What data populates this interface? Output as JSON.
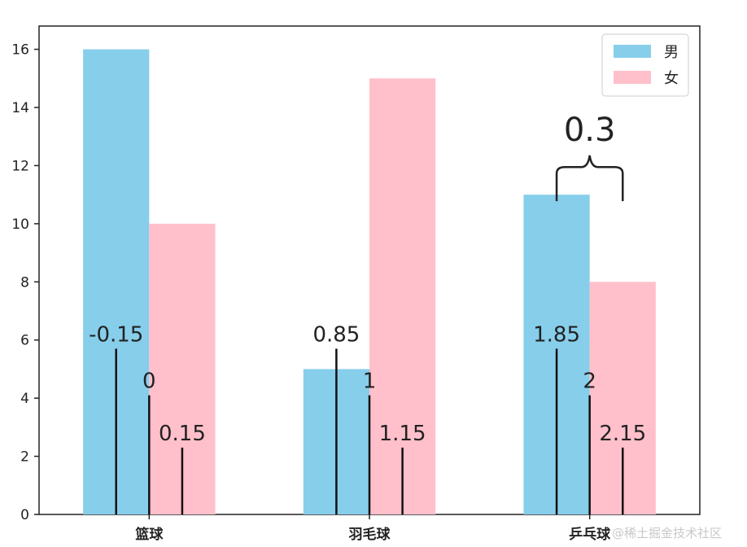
{
  "chart_data": {
    "type": "bar",
    "categories": [
      "篮球",
      "羽毛球",
      "乒乓球"
    ],
    "series": [
      {
        "name": "男",
        "values": [
          16,
          5,
          11
        ],
        "color": "#87ceeb"
      },
      {
        "name": "女",
        "values": [
          10,
          15,
          8
        ],
        "color": "#ffc0cb"
      }
    ],
    "ylim": [
      0,
      16.8
    ],
    "yticks": [
      0,
      2,
      4,
      6,
      8,
      10,
      12,
      14,
      16
    ],
    "xlim": [
      -0.5,
      2.5
    ],
    "legend_position": "top-right",
    "grid": false,
    "annotations": {
      "markers": [
        {
          "x": -0.15,
          "label": "-0.15",
          "height": 5.7
        },
        {
          "x": 0,
          "label": "0",
          "height": 4.1
        },
        {
          "x": 0.15,
          "label": "0.15",
          "height": 2.3
        },
        {
          "x": 0.85,
          "label": "0.85",
          "height": 5.7
        },
        {
          "x": 1,
          "label": "1",
          "height": 4.1
        },
        {
          "x": 1.15,
          "label": "1.15",
          "height": 2.3
        },
        {
          "x": 1.85,
          "label": "1.85",
          "height": 5.7
        },
        {
          "x": 2,
          "label": "2",
          "height": 4.1
        },
        {
          "x": 2.15,
          "label": "2.15",
          "height": 2.3
        }
      ],
      "brace": {
        "x_start": 1.85,
        "x_end": 2.15,
        "label": "0.3"
      }
    }
  },
  "watermark": "@稀土掘金技术社区"
}
